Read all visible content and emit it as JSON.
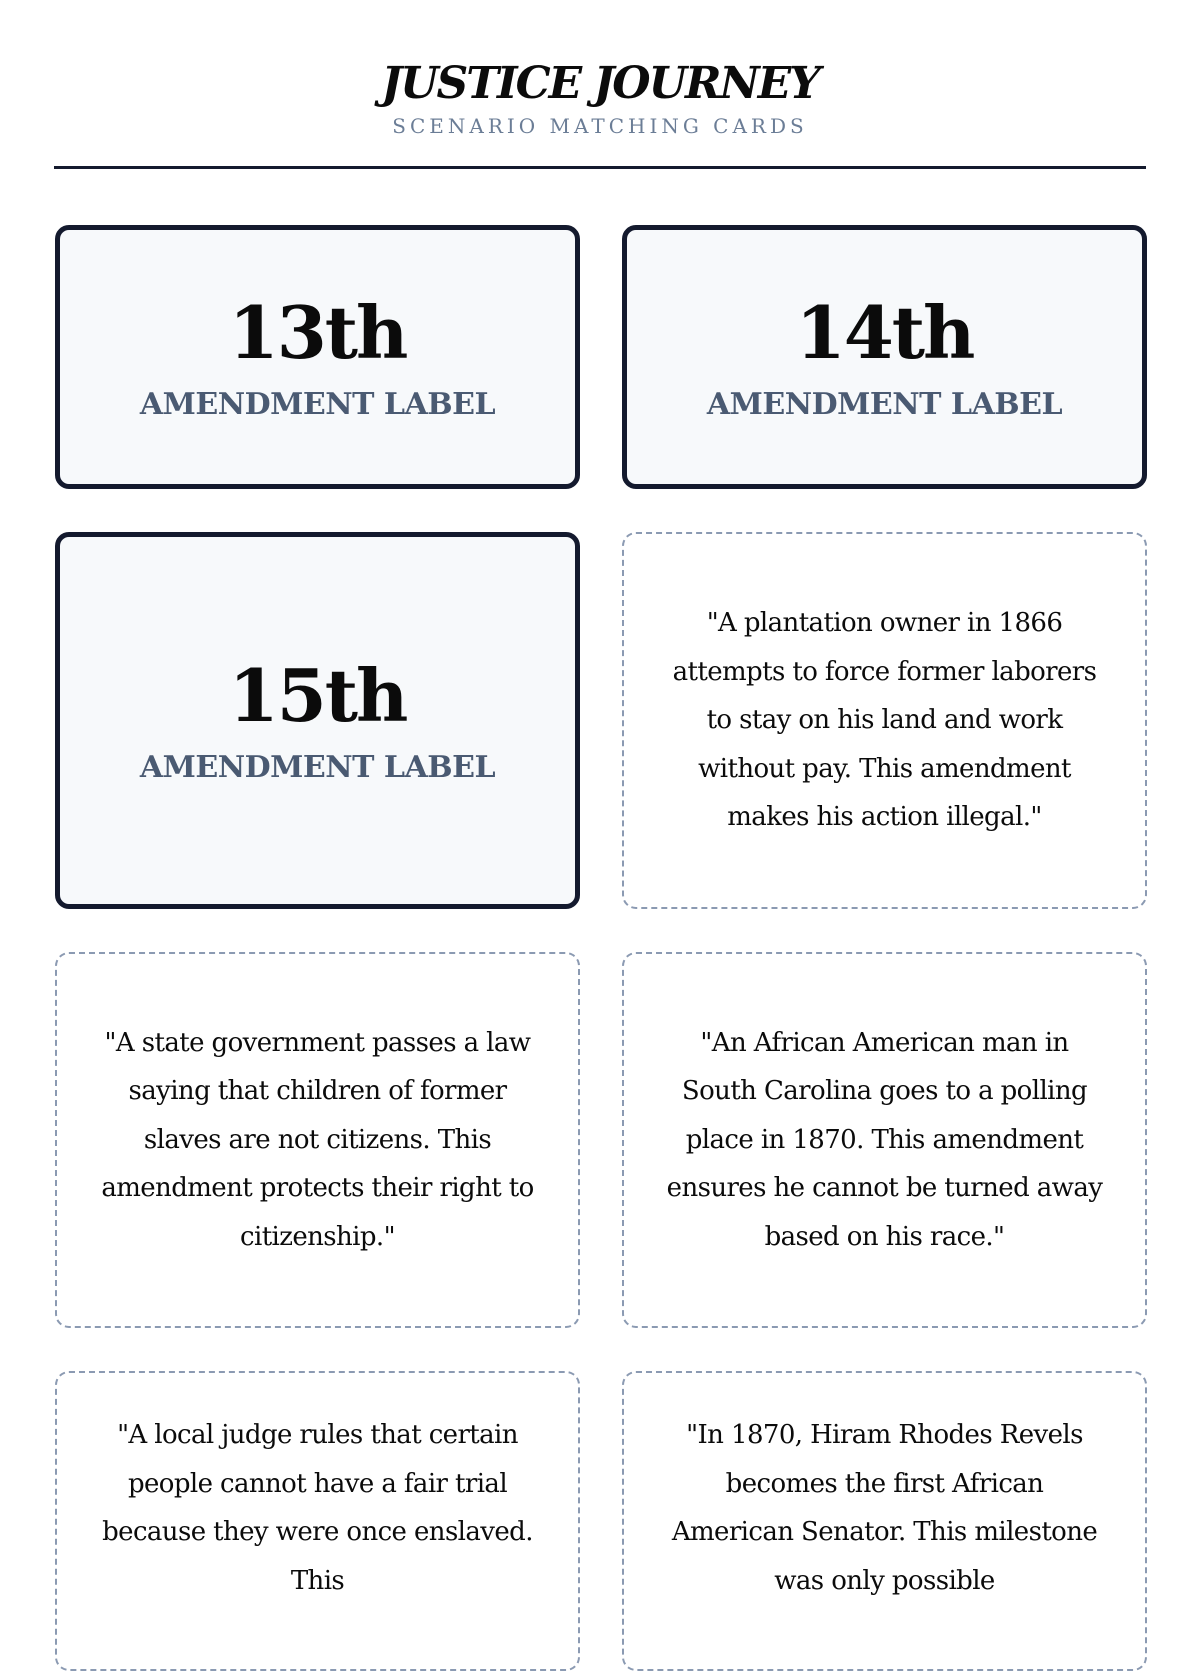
{
  "header": {
    "title": "JUSTICE JOURNEY",
    "subtitle": "SCENARIO MATCHING CARDS"
  },
  "label_cards": [
    {
      "number": "13th",
      "label": "AMENDMENT LABEL"
    },
    {
      "number": "14th",
      "label": "AMENDMENT LABEL"
    },
    {
      "number": "15th",
      "label": "AMENDMENT LABEL"
    }
  ],
  "scenario_cards": [
    {
      "text": "\"A plantation owner in 1866 attempts to force former laborers to stay on his land and work without pay. This amendment makes his action illegal.\""
    },
    {
      "text": "\"A state government passes a law saying that children of former slaves are not citizens. This amendment protects their right to citizenship.\""
    },
    {
      "text": "\"An African American man in South Carolina goes to a polling place in 1870. This amendment ensures he cannot be turned away based on his race.\""
    },
    {
      "text": "\"A local judge rules that certain people cannot have a fair trial because they were once enslaved. This"
    },
    {
      "text": "\"In 1870, Hiram Rhodes Revels becomes the first African American Senator. This milestone was only possible"
    }
  ],
  "colors": {
    "ink": "#141a2e",
    "muted": "#4a5a72",
    "subtitle": "#6b7d96",
    "dash": "#8b9ab2",
    "card_bg": "#f7f9fb"
  }
}
